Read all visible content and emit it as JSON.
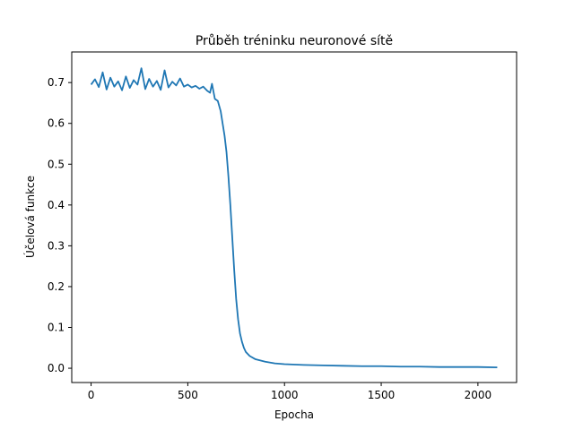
{
  "chart_data": {
    "type": "line",
    "title": "Průběh tréninku neuronové sítě",
    "xlabel": "Epocha",
    "ylabel": "Účelová funkce",
    "xlim": [
      -100,
      2200
    ],
    "ylim": [
      -0.035,
      0.775
    ],
    "xticks": [
      0,
      500,
      1000,
      1500,
      2000
    ],
    "yticks": [
      0.0,
      0.1,
      0.2,
      0.3,
      0.4,
      0.5,
      0.6,
      0.7
    ],
    "grid": false,
    "legend": "none",
    "series": [
      {
        "color": "#1f77b4",
        "x": [
          0,
          20,
          40,
          60,
          80,
          100,
          120,
          140,
          160,
          180,
          200,
          220,
          240,
          260,
          280,
          300,
          320,
          340,
          360,
          380,
          400,
          420,
          440,
          460,
          480,
          500,
          520,
          540,
          560,
          580,
          600,
          615,
          625,
          640,
          655,
          670,
          680,
          690,
          700,
          710,
          720,
          730,
          740,
          750,
          760,
          770,
          780,
          790,
          800,
          820,
          850,
          900,
          950,
          1000,
          1100,
          1200,
          1300,
          1400,
          1500,
          1600,
          1700,
          1800,
          1900,
          2000,
          2100
        ],
        "y": [
          0.695,
          0.708,
          0.689,
          0.725,
          0.683,
          0.712,
          0.69,
          0.703,
          0.681,
          0.715,
          0.687,
          0.706,
          0.695,
          0.735,
          0.684,
          0.709,
          0.69,
          0.704,
          0.682,
          0.73,
          0.688,
          0.702,
          0.693,
          0.71,
          0.69,
          0.695,
          0.688,
          0.692,
          0.685,
          0.69,
          0.68,
          0.675,
          0.697,
          0.66,
          0.655,
          0.63,
          0.6,
          0.57,
          0.53,
          0.47,
          0.4,
          0.32,
          0.24,
          0.17,
          0.12,
          0.085,
          0.065,
          0.05,
          0.04,
          0.03,
          0.022,
          0.016,
          0.012,
          0.01,
          0.008,
          0.007,
          0.006,
          0.005,
          0.005,
          0.004,
          0.004,
          0.003,
          0.003,
          0.003,
          0.002
        ]
      }
    ]
  }
}
